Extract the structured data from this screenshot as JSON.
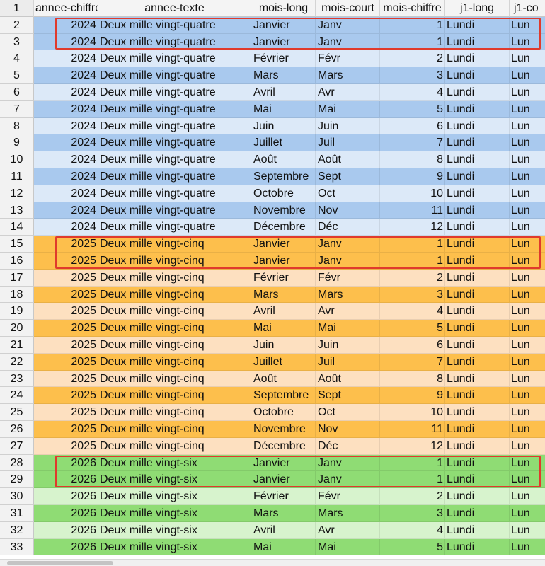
{
  "colors": {
    "blue_dark": "#a9c9ee",
    "blue_light": "#dce9f8",
    "orange_dark": "#fdbf4c",
    "orange_light": "#fde0c0",
    "green_dark": "#8fdc74",
    "green_light": "#d7f3cd",
    "highlight_border": "#e03a2c"
  },
  "header": {
    "row_number": "1",
    "columns": [
      "annee-chiffre",
      "annee-texte",
      "mois-long",
      "mois-court",
      "mois-chiffre",
      "j1-long",
      "j1-co"
    ]
  },
  "rows": [
    {
      "n": "2",
      "annee": "2024",
      "texte": "Deux mille vingt-quatre",
      "mois_long": "Janvier",
      "mois_court": "Janv",
      "mois_chiffre": "1",
      "j1_long": "Lundi",
      "j1_court": "Lun",
      "shade": "blue_dark"
    },
    {
      "n": "3",
      "annee": "2024",
      "texte": "Deux mille vingt-quatre",
      "mois_long": "Janvier",
      "mois_court": "Janv",
      "mois_chiffre": "1",
      "j1_long": "Lundi",
      "j1_court": "Lun",
      "shade": "blue_dark"
    },
    {
      "n": "4",
      "annee": "2024",
      "texte": "Deux mille vingt-quatre",
      "mois_long": "Février",
      "mois_court": "Févr",
      "mois_chiffre": "2",
      "j1_long": "Lundi",
      "j1_court": "Lun",
      "shade": "blue_light"
    },
    {
      "n": "5",
      "annee": "2024",
      "texte": "Deux mille vingt-quatre",
      "mois_long": "Mars",
      "mois_court": "Mars",
      "mois_chiffre": "3",
      "j1_long": "Lundi",
      "j1_court": "Lun",
      "shade": "blue_dark"
    },
    {
      "n": "6",
      "annee": "2024",
      "texte": "Deux mille vingt-quatre",
      "mois_long": "Avril",
      "mois_court": "Avr",
      "mois_chiffre": "4",
      "j1_long": "Lundi",
      "j1_court": "Lun",
      "shade": "blue_light"
    },
    {
      "n": "7",
      "annee": "2024",
      "texte": "Deux mille vingt-quatre",
      "mois_long": "Mai",
      "mois_court": "Mai",
      "mois_chiffre": "5",
      "j1_long": "Lundi",
      "j1_court": "Lun",
      "shade": "blue_dark"
    },
    {
      "n": "8",
      "annee": "2024",
      "texte": "Deux mille vingt-quatre",
      "mois_long": "Juin",
      "mois_court": "Juin",
      "mois_chiffre": "6",
      "j1_long": "Lundi",
      "j1_court": "Lun",
      "shade": "blue_light"
    },
    {
      "n": "9",
      "annee": "2024",
      "texte": "Deux mille vingt-quatre",
      "mois_long": "Juillet",
      "mois_court": "Juil",
      "mois_chiffre": "7",
      "j1_long": "Lundi",
      "j1_court": "Lun",
      "shade": "blue_dark"
    },
    {
      "n": "10",
      "annee": "2024",
      "texte": "Deux mille vingt-quatre",
      "mois_long": "Août",
      "mois_court": "Août",
      "mois_chiffre": "8",
      "j1_long": "Lundi",
      "j1_court": "Lun",
      "shade": "blue_light"
    },
    {
      "n": "11",
      "annee": "2024",
      "texte": "Deux mille vingt-quatre",
      "mois_long": "Septembre",
      "mois_court": "Sept",
      "mois_chiffre": "9",
      "j1_long": "Lundi",
      "j1_court": "Lun",
      "shade": "blue_dark"
    },
    {
      "n": "12",
      "annee": "2024",
      "texte": "Deux mille vingt-quatre",
      "mois_long": "Octobre",
      "mois_court": "Oct",
      "mois_chiffre": "10",
      "j1_long": "Lundi",
      "j1_court": "Lun",
      "shade": "blue_light"
    },
    {
      "n": "13",
      "annee": "2024",
      "texte": "Deux mille vingt-quatre",
      "mois_long": "Novembre",
      "mois_court": "Nov",
      "mois_chiffre": "11",
      "j1_long": "Lundi",
      "j1_court": "Lun",
      "shade": "blue_dark"
    },
    {
      "n": "14",
      "annee": "2024",
      "texte": "Deux mille vingt-quatre",
      "mois_long": "Décembre",
      "mois_court": "Déc",
      "mois_chiffre": "12",
      "j1_long": "Lundi",
      "j1_court": "Lun",
      "shade": "blue_light"
    },
    {
      "n": "15",
      "annee": "2025",
      "texte": "Deux mille vingt-cinq",
      "mois_long": "Janvier",
      "mois_court": "Janv",
      "mois_chiffre": "1",
      "j1_long": "Lundi",
      "j1_court": "Lun",
      "shade": "orange_dark"
    },
    {
      "n": "16",
      "annee": "2025",
      "texte": "Deux mille vingt-cinq",
      "mois_long": "Janvier",
      "mois_court": "Janv",
      "mois_chiffre": "1",
      "j1_long": "Lundi",
      "j1_court": "Lun",
      "shade": "orange_dark"
    },
    {
      "n": "17",
      "annee": "2025",
      "texte": "Deux mille vingt-cinq",
      "mois_long": "Février",
      "mois_court": "Févr",
      "mois_chiffre": "2",
      "j1_long": "Lundi",
      "j1_court": "Lun",
      "shade": "orange_light"
    },
    {
      "n": "18",
      "annee": "2025",
      "texte": "Deux mille vingt-cinq",
      "mois_long": "Mars",
      "mois_court": "Mars",
      "mois_chiffre": "3",
      "j1_long": "Lundi",
      "j1_court": "Lun",
      "shade": "orange_dark"
    },
    {
      "n": "19",
      "annee": "2025",
      "texte": "Deux mille vingt-cinq",
      "mois_long": "Avril",
      "mois_court": "Avr",
      "mois_chiffre": "4",
      "j1_long": "Lundi",
      "j1_court": "Lun",
      "shade": "orange_light"
    },
    {
      "n": "20",
      "annee": "2025",
      "texte": "Deux mille vingt-cinq",
      "mois_long": "Mai",
      "mois_court": "Mai",
      "mois_chiffre": "5",
      "j1_long": "Lundi",
      "j1_court": "Lun",
      "shade": "orange_dark"
    },
    {
      "n": "21",
      "annee": "2025",
      "texte": "Deux mille vingt-cinq",
      "mois_long": "Juin",
      "mois_court": "Juin",
      "mois_chiffre": "6",
      "j1_long": "Lundi",
      "j1_court": "Lun",
      "shade": "orange_light"
    },
    {
      "n": "22",
      "annee": "2025",
      "texte": "Deux mille vingt-cinq",
      "mois_long": "Juillet",
      "mois_court": "Juil",
      "mois_chiffre": "7",
      "j1_long": "Lundi",
      "j1_court": "Lun",
      "shade": "orange_dark"
    },
    {
      "n": "23",
      "annee": "2025",
      "texte": "Deux mille vingt-cinq",
      "mois_long": "Août",
      "mois_court": "Août",
      "mois_chiffre": "8",
      "j1_long": "Lundi",
      "j1_court": "Lun",
      "shade": "orange_light"
    },
    {
      "n": "24",
      "annee": "2025",
      "texte": "Deux mille vingt-cinq",
      "mois_long": "Septembre",
      "mois_court": "Sept",
      "mois_chiffre": "9",
      "j1_long": "Lundi",
      "j1_court": "Lun",
      "shade": "orange_dark"
    },
    {
      "n": "25",
      "annee": "2025",
      "texte": "Deux mille vingt-cinq",
      "mois_long": "Octobre",
      "mois_court": "Oct",
      "mois_chiffre": "10",
      "j1_long": "Lundi",
      "j1_court": "Lun",
      "shade": "orange_light"
    },
    {
      "n": "26",
      "annee": "2025",
      "texte": "Deux mille vingt-cinq",
      "mois_long": "Novembre",
      "mois_court": "Nov",
      "mois_chiffre": "11",
      "j1_long": "Lundi",
      "j1_court": "Lun",
      "shade": "orange_dark"
    },
    {
      "n": "27",
      "annee": "2025",
      "texte": "Deux mille vingt-cinq",
      "mois_long": "Décembre",
      "mois_court": "Déc",
      "mois_chiffre": "12",
      "j1_long": "Lundi",
      "j1_court": "Lun",
      "shade": "orange_light"
    },
    {
      "n": "28",
      "annee": "2026",
      "texte": "Deux mille vingt-six",
      "mois_long": "Janvier",
      "mois_court": "Janv",
      "mois_chiffre": "1",
      "j1_long": "Lundi",
      "j1_court": "Lun",
      "shade": "green_dark"
    },
    {
      "n": "29",
      "annee": "2026",
      "texte": "Deux mille vingt-six",
      "mois_long": "Janvier",
      "mois_court": "Janv",
      "mois_chiffre": "1",
      "j1_long": "Lundi",
      "j1_court": "Lun",
      "shade": "green_dark"
    },
    {
      "n": "30",
      "annee": "2026",
      "texte": "Deux mille vingt-six",
      "mois_long": "Février",
      "mois_court": "Févr",
      "mois_chiffre": "2",
      "j1_long": "Lundi",
      "j1_court": "Lun",
      "shade": "green_light"
    },
    {
      "n": "31",
      "annee": "2026",
      "texte": "Deux mille vingt-six",
      "mois_long": "Mars",
      "mois_court": "Mars",
      "mois_chiffre": "3",
      "j1_long": "Lundi",
      "j1_court": "Lun",
      "shade": "green_dark"
    },
    {
      "n": "32",
      "annee": "2026",
      "texte": "Deux mille vingt-six",
      "mois_long": "Avril",
      "mois_court": "Avr",
      "mois_chiffre": "4",
      "j1_long": "Lundi",
      "j1_court": "Lun",
      "shade": "green_light"
    },
    {
      "n": "33",
      "annee": "2026",
      "texte": "Deux mille vingt-six",
      "mois_long": "Mai",
      "mois_court": "Mai",
      "mois_chiffre": "5",
      "j1_long": "Lundi",
      "j1_court": "Lun",
      "shade": "green_dark"
    }
  ],
  "highlight_groups": [
    {
      "first_row": "2",
      "last_row": "3"
    },
    {
      "first_row": "15",
      "last_row": "16"
    },
    {
      "first_row": "28",
      "last_row": "29"
    }
  ]
}
